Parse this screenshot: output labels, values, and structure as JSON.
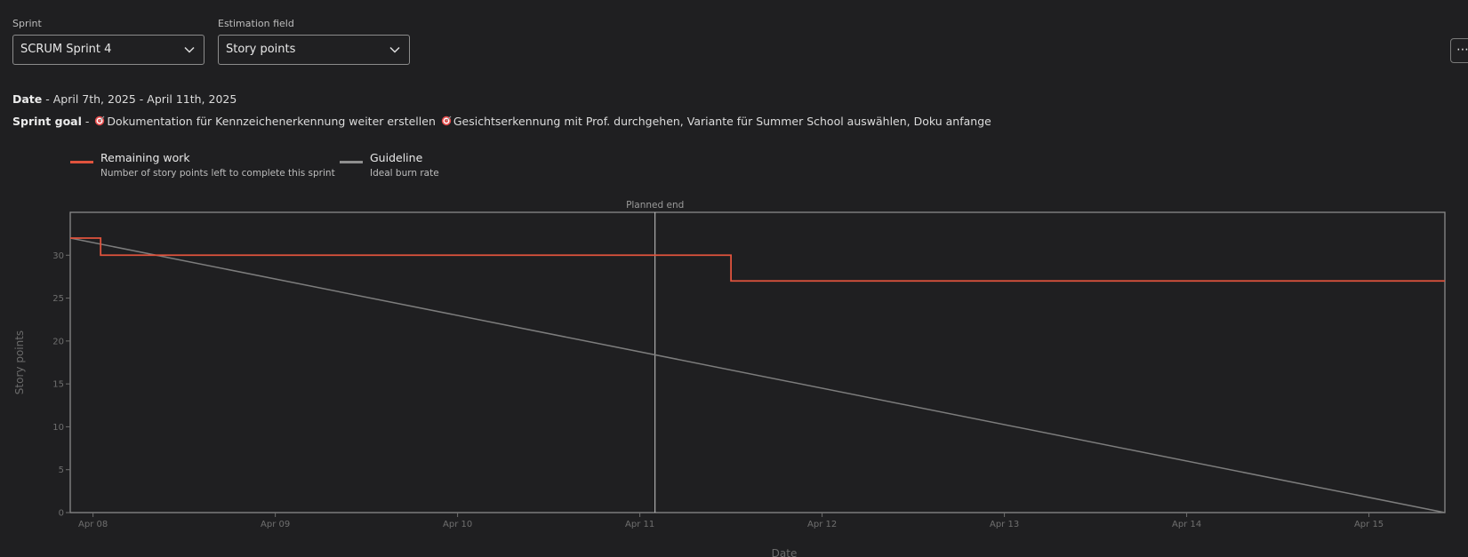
{
  "filters": {
    "sprint_label": "Sprint",
    "sprint_value": "SCRUM Sprint 4",
    "estimation_label": "Estimation field",
    "estimation_value": "Story points",
    "more_label": "⋯"
  },
  "info": {
    "date_label": "Date",
    "date_value": "- April 7th, 2025 - April 11th, 2025",
    "goal_label": "Sprint goal",
    "goal_prefix": "-",
    "goal_part1": "Dokumentation für Kennzeichenerkennung weiter erstellen",
    "goal_part2": "Gesichtserkennung mit Prof. durchgehen, Variante für Summer School auswählen, Doku anfange",
    "goal_icon": "target-icon"
  },
  "legend": [
    {
      "name": "Remaining work",
      "description": "Number of story points left to complete this sprint",
      "color": "#e0533d"
    },
    {
      "name": "Guideline",
      "description": "Ideal burn rate",
      "color": "#8f8f8f"
    }
  ],
  "chart_data": {
    "type": "line",
    "xlabel": "Date",
    "ylabel": "Story points",
    "ylim": [
      0,
      35
    ],
    "yticks": [
      0,
      5,
      10,
      15,
      20,
      25,
      30
    ],
    "xlim": [
      "2025-04-07T21:00",
      "2025-04-15T10:00"
    ],
    "xticks": [
      {
        "date": "2025-04-08",
        "label": "Apr 08"
      },
      {
        "date": "2025-04-09",
        "label": "Apr 09"
      },
      {
        "date": "2025-04-10",
        "label": "Apr 10"
      },
      {
        "date": "2025-04-11",
        "label": "Apr 11"
      },
      {
        "date": "2025-04-12",
        "label": "Apr 12"
      },
      {
        "date": "2025-04-13",
        "label": "Apr 13"
      },
      {
        "date": "2025-04-14",
        "label": "Apr 14"
      },
      {
        "date": "2025-04-15",
        "label": "Apr 15"
      }
    ],
    "series": [
      {
        "name": "Remaining work",
        "color": "#e0533d",
        "step": true,
        "points": [
          {
            "x": "2025-04-07T21:00",
            "y": 32
          },
          {
            "x": "2025-04-08T01:00",
            "y": 30
          },
          {
            "x": "2025-04-11T12:00",
            "y": 27
          },
          {
            "x": "2025-04-15T10:00",
            "y": 27
          }
        ]
      },
      {
        "name": "Guideline",
        "color": "#7d7d7d",
        "step": false,
        "points": [
          {
            "x": "2025-04-07T21:00",
            "y": 32
          },
          {
            "x": "2025-04-15T10:00",
            "y": 0
          }
        ]
      }
    ],
    "markers": [
      {
        "x": "2025-04-11T02:00",
        "label": "Planned end"
      }
    ],
    "grid": false
  }
}
